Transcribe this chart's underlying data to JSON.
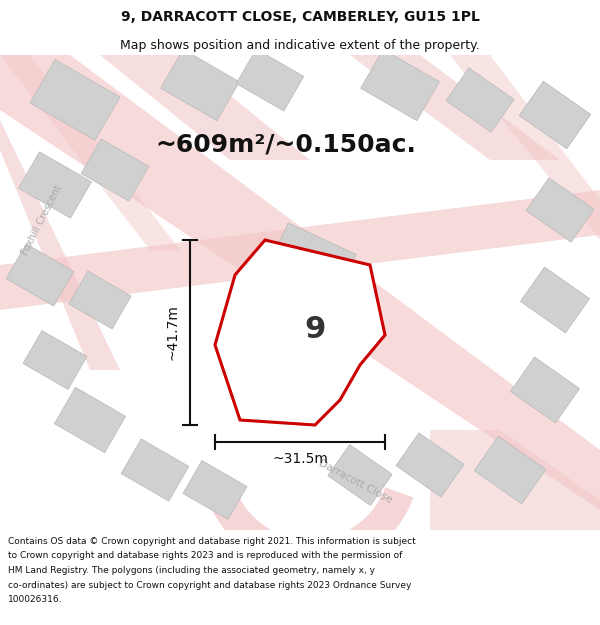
{
  "title": "9, DARRACOTT CLOSE, CAMBERLEY, GU15 1PL",
  "subtitle": "Map shows position and indicative extent of the property.",
  "area_label": "~609m²/~0.150ac.",
  "width_label": "~31.5m",
  "height_label": "~41.7m",
  "plot_number": "9",
  "footer": "Contains OS data © Crown copyright and database right 2021. This information is subject to Crown copyright and database rights 2023 and is reproduced with the permission of HM Land Registry. The polygons (including the associated geometry, namely x, y co-ordinates) are subject to Crown copyright and database rights 2023 Ordnance Survey 100026316.",
  "bg_color": "#f0eeee",
  "road_color": "#f2c4c4",
  "building_color": "#d0d0d0",
  "building_edge": "#b8b8b8",
  "plot_fill": "#ffffff",
  "plot_edge": "#cc0000",
  "dim_color": "#111111",
  "text_color": "#111111",
  "street_label_color": "#aaaaaa",
  "title_fontsize": 10,
  "subtitle_fontsize": 9,
  "area_fontsize": 18,
  "number_fontsize": 22,
  "dim_fontsize": 10,
  "footer_fontsize": 6.5
}
